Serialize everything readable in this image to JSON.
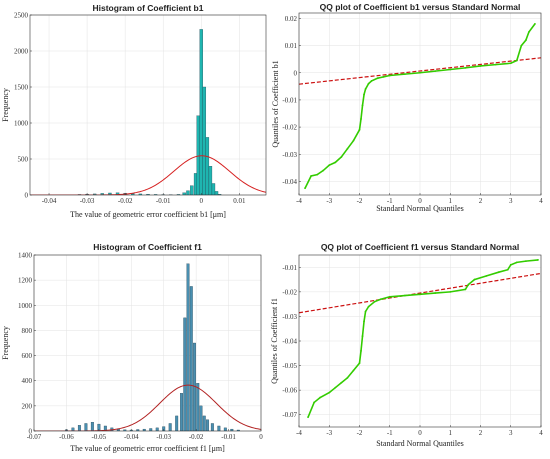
{
  "chart_data": [
    {
      "type": "bar",
      "title": "Histogram of Coefficient b1",
      "xlabel": "The value of geometric error coefficient b1 [μm]",
      "ylabel": "Frequency",
      "xlim": [
        -0.045,
        0.017
      ],
      "ylim": [
        0,
        2500
      ],
      "xticks": [
        -0.04,
        -0.03,
        -0.02,
        -0.01,
        0,
        0.01
      ],
      "xtick_labels": [
        "-0.04",
        "-0.03",
        "-0.02",
        "-0.01",
        "0",
        "0.01"
      ],
      "yticks": [
        0,
        500,
        1000,
        1500,
        2000,
        2500
      ],
      "ytick_labels": [
        "0",
        "500",
        "1000",
        "1500",
        "2000",
        "2500"
      ],
      "bar_width": 0.0008,
      "x": [
        -0.032,
        -0.03,
        -0.028,
        -0.026,
        -0.024,
        -0.022,
        -0.02,
        -0.018,
        -0.016,
        -0.014,
        -0.012,
        -0.01,
        -0.008,
        -0.006,
        -0.0045,
        -0.0035,
        -0.0025,
        -0.0015,
        -0.0008,
        0.0,
        0.0008,
        0.0016,
        0.0024,
        0.0032,
        0.004,
        0.0048
      ],
      "values": [
        8,
        12,
        15,
        22,
        28,
        30,
        26,
        20,
        15,
        10,
        8,
        6,
        5,
        8,
        30,
        60,
        130,
        300,
        1100,
        2300,
        1500,
        800,
        400,
        160,
        50,
        10
      ],
      "bar_color": "#1fb5b0",
      "fit_curve": {
        "mean": 0.0001,
        "std": 0.0073,
        "peak": 545,
        "color": "#d62020"
      },
      "grid": true
    },
    {
      "type": "scatter",
      "title": "QQ plot of Coefficient b1 versus Standard Normal",
      "xlabel": "Standard Normal Quantiles",
      "ylabel": "Quantiles of Coefficient b1",
      "xlim": [
        -4,
        4
      ],
      "ylim": [
        -0.045,
        0.022
      ],
      "xticks": [
        -4,
        -3,
        -2,
        -1,
        0,
        1,
        2,
        3,
        4
      ],
      "xtick_labels": [
        "-4",
        "-3",
        "-2",
        "-1",
        "0",
        "1",
        "2",
        "3",
        "4"
      ],
      "yticks": [
        -0.04,
        -0.03,
        -0.02,
        -0.01,
        0,
        0.01,
        0.02
      ],
      "ytick_labels": [
        "-0.04",
        "-0.03",
        "-0.02",
        "-0.01",
        "0",
        "0.01",
        "0.02"
      ],
      "points": [
        [
          -3.8,
          -0.0425
        ],
        [
          -3.6,
          -0.038
        ],
        [
          -3.4,
          -0.0375
        ],
        [
          -3.2,
          -0.036
        ],
        [
          -3.0,
          -0.034
        ],
        [
          -2.8,
          -0.033
        ],
        [
          -2.6,
          -0.031
        ],
        [
          -2.4,
          -0.028
        ],
        [
          -2.2,
          -0.025
        ],
        [
          -2.0,
          -0.021
        ],
        [
          -1.95,
          -0.017
        ],
        [
          -1.9,
          -0.012
        ],
        [
          -1.85,
          -0.008
        ],
        [
          -1.8,
          -0.006
        ],
        [
          -1.7,
          -0.004
        ],
        [
          -1.6,
          -0.003
        ],
        [
          -1.4,
          -0.002
        ],
        [
          -1.2,
          -0.0015
        ],
        [
          -1.0,
          -0.001
        ],
        [
          -0.5,
          -0.0005
        ],
        [
          0.0,
          0.0
        ],
        [
          0.5,
          0.0006
        ],
        [
          1.0,
          0.0012
        ],
        [
          1.5,
          0.0018
        ],
        [
          2.0,
          0.0025
        ],
        [
          2.5,
          0.003
        ],
        [
          3.0,
          0.0035
        ],
        [
          3.2,
          0.0045
        ],
        [
          3.35,
          0.01
        ],
        [
          3.5,
          0.012
        ],
        [
          3.6,
          0.015
        ],
        [
          3.8,
          0.018
        ]
      ],
      "point_color": "#33cc00",
      "ref_line": {
        "x": [
          -4,
          4
        ],
        "y": [
          -0.0042,
          0.0055
        ],
        "color": "#cc1111"
      },
      "grid": true
    },
    {
      "type": "bar",
      "title": "Histogram of Coefficient f1",
      "xlabel": "The value of geometric error coefficient f1 [μm]",
      "ylabel": "Frequency",
      "xlim": [
        -0.07,
        0.0
      ],
      "ylim": [
        0,
        1400
      ],
      "xticks": [
        -0.07,
        -0.06,
        -0.05,
        -0.04,
        -0.03,
        -0.02,
        -0.01,
        0
      ],
      "xtick_labels": [
        "-0.07",
        "-0.06",
        "-0.05",
        "-0.04",
        "-0.03",
        "-0.02",
        "-0.01",
        "0"
      ],
      "yticks": [
        0,
        200,
        400,
        600,
        800,
        1000,
        1200,
        1400
      ],
      "ytick_labels": [
        "0",
        "200",
        "400",
        "600",
        "800",
        "1000",
        "1200",
        "1400"
      ],
      "bar_width": 0.0008,
      "x": [
        -0.06,
        -0.058,
        -0.056,
        -0.054,
        -0.052,
        -0.05,
        -0.048,
        -0.046,
        -0.044,
        -0.042,
        -0.04,
        -0.038,
        -0.036,
        -0.034,
        -0.032,
        -0.03,
        -0.028,
        -0.026,
        -0.0245,
        -0.0235,
        -0.0225,
        -0.0215,
        -0.0205,
        -0.0195,
        -0.0185,
        -0.0175,
        -0.0165,
        -0.015,
        -0.013,
        -0.011,
        -0.009,
        -0.007
      ],
      "values": [
        10,
        25,
        45,
        60,
        70,
        55,
        40,
        25,
        15,
        10,
        8,
        12,
        15,
        20,
        25,
        35,
        60,
        120,
        300,
        900,
        1330,
        1150,
        700,
        380,
        200,
        120,
        90,
        60,
        40,
        25,
        15,
        8
      ],
      "bar_color": "#4a8fb0",
      "fit_curve": {
        "mean": -0.0225,
        "std": 0.0087,
        "peak": 365,
        "color": "#b22222"
      },
      "grid": true
    },
    {
      "type": "scatter",
      "title": "QQ plot of Coefficient f1 versus Standard Normal",
      "xlabel": "Standard Normal Quantiles",
      "ylabel": "Quantiles of Coefficient f1",
      "xlim": [
        -4,
        4
      ],
      "ylim": [
        -0.075,
        -0.005
      ],
      "xticks": [
        -4,
        -3,
        -2,
        -1,
        0,
        1,
        2,
        3,
        4
      ],
      "xtick_labels": [
        "-4",
        "-3",
        "-2",
        "-1",
        "0",
        "1",
        "2",
        "3",
        "4"
      ],
      "yticks": [
        -0.07,
        -0.06,
        -0.05,
        -0.04,
        -0.03,
        -0.02,
        -0.01
      ],
      "ytick_labels": [
        "-0.07",
        "-0.06",
        "-0.05",
        "-0.04",
        "-0.03",
        "-0.02",
        "-0.01"
      ],
      "points": [
        [
          -3.7,
          -0.071
        ],
        [
          -3.5,
          -0.065
        ],
        [
          -3.3,
          -0.063
        ],
        [
          -3.0,
          -0.061
        ],
        [
          -2.8,
          -0.059
        ],
        [
          -2.6,
          -0.057
        ],
        [
          -2.4,
          -0.055
        ],
        [
          -2.2,
          -0.052
        ],
        [
          -2.0,
          -0.049
        ],
        [
          -1.95,
          -0.044
        ],
        [
          -1.9,
          -0.038
        ],
        [
          -1.85,
          -0.032
        ],
        [
          -1.8,
          -0.028
        ],
        [
          -1.7,
          -0.026
        ],
        [
          -1.5,
          -0.024
        ],
        [
          -1.3,
          -0.023
        ],
        [
          -1.0,
          -0.022
        ],
        [
          -0.5,
          -0.0215
        ],
        [
          0.0,
          -0.021
        ],
        [
          0.5,
          -0.0205
        ],
        [
          1.0,
          -0.02
        ],
        [
          1.5,
          -0.019
        ],
        [
          1.6,
          -0.017
        ],
        [
          1.8,
          -0.015
        ],
        [
          2.2,
          -0.0135
        ],
        [
          2.6,
          -0.012
        ],
        [
          2.9,
          -0.011
        ],
        [
          3.0,
          -0.009
        ],
        [
          3.2,
          -0.008
        ],
        [
          3.5,
          -0.0075
        ],
        [
          3.9,
          -0.007
        ]
      ],
      "point_color": "#33cc00",
      "ref_line": {
        "x": [
          -4,
          4
        ],
        "y": [
          -0.0285,
          -0.0125
        ],
        "color": "#cc1111"
      },
      "grid": true
    }
  ]
}
